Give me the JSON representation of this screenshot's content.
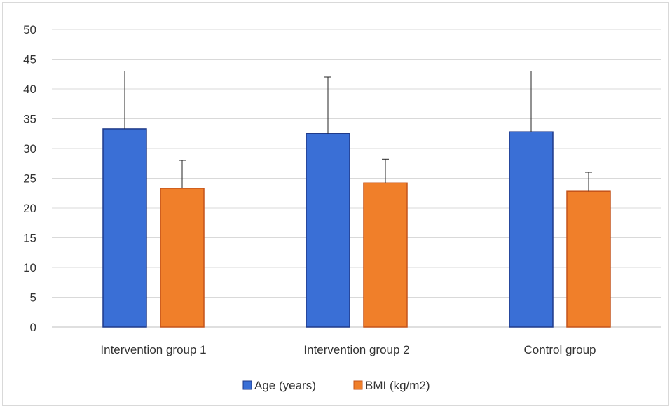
{
  "chart_data": {
    "type": "bar",
    "title": "",
    "xlabel": "",
    "ylabel": "",
    "categories": [
      "Intervention group 1",
      "Intervention group 2",
      "Control group"
    ],
    "series": [
      {
        "name": "Age (years)",
        "color": "#3a6fd6",
        "border": "#1f3a8a",
        "values": [
          33.3,
          32.5,
          32.8
        ],
        "error_upper": [
          43.0,
          42.0,
          43.0
        ]
      },
      {
        "name": "BMI (kg/m2)",
        "color": "#f07f2a",
        "border": "#c4531a",
        "values": [
          23.3,
          24.2,
          22.8
        ],
        "error_upper": [
          28.0,
          28.2,
          26.0
        ]
      }
    ],
    "ylim": [
      0,
      50
    ],
    "yticks": [
      0,
      5,
      10,
      15,
      20,
      25,
      30,
      35,
      40,
      45,
      50
    ],
    "grid": true,
    "legend": "bottom-center"
  }
}
